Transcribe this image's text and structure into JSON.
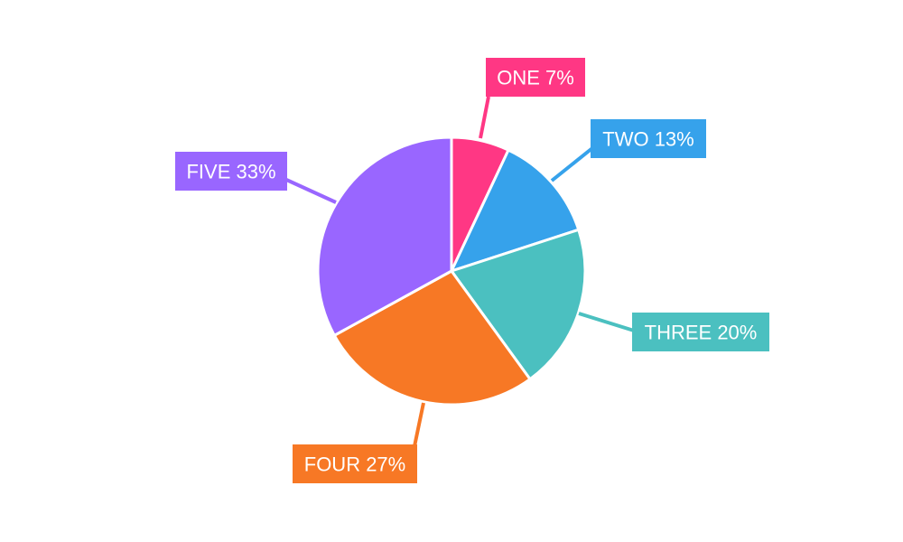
{
  "chart_data": {
    "type": "pie",
    "slices": [
      {
        "label": "ONE",
        "value": 7,
        "color": "#FF3784"
      },
      {
        "label": "TWO",
        "value": 13,
        "color": "#36A2EB"
      },
      {
        "label": "THREE",
        "value": 20,
        "color": "#4BC0C0"
      },
      {
        "label": "FOUR",
        "value": 27,
        "color": "#F77825"
      },
      {
        "label": "FIVE",
        "value": 33,
        "color": "#9966FF"
      }
    ],
    "value_suffix": "%",
    "labels_outside": true,
    "start_angle": "top",
    "direction": "clockwise"
  }
}
